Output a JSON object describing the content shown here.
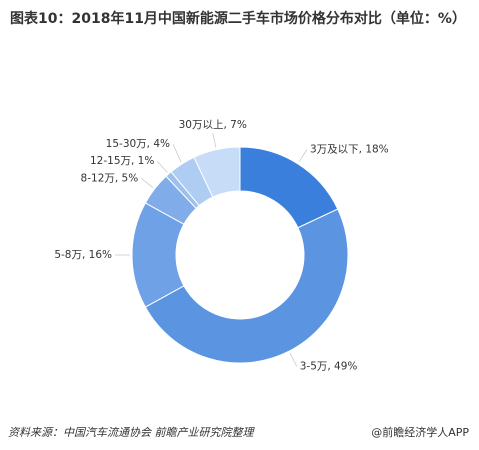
{
  "chart_data": {
    "type": "donut",
    "title": "图表10：2018年11月中国新能源二手车市场价格分布对比（单位：%）",
    "values": [
      18,
      49,
      16,
      5,
      1,
      4,
      7
    ],
    "value_labels": [
      "3万及以下, 18%",
      "3-5万, 49%",
      "5-8万, 16%",
      "8-12万, 5%",
      "12-15万, 1%",
      "15-30万, 4%",
      "30万以上, 7%"
    ],
    "colors": [
      "#3b7fdc",
      "#5b95e2",
      "#6ea1e6",
      "#80ace9",
      "#9dc0ef",
      "#afcdf2",
      "#c6dcf7"
    ],
    "source": "资料来源：中国汽车流通协会  前瞻产业研究院整理",
    "credit": "@前瞻经济学人APP"
  }
}
